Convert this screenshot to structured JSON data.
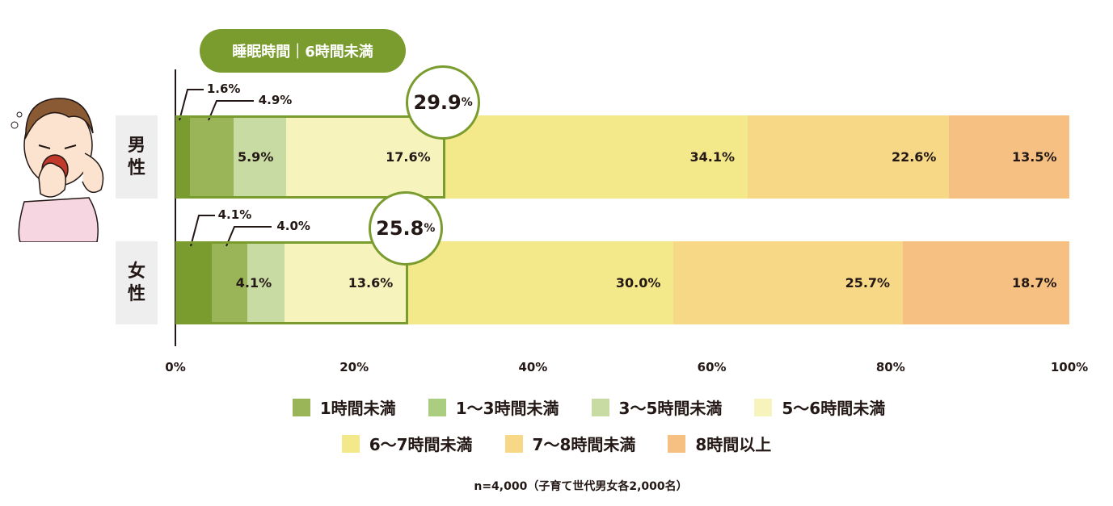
{
  "header": {
    "pill": "睡眠時間｜6時間未満"
  },
  "chart_data": {
    "type": "bar",
    "orientation": "horizontal-stacked-100",
    "categories": [
      "男性",
      "女性"
    ],
    "series": [
      {
        "name": "1時間未満",
        "color": "#7a9c2e",
        "values": [
          1.6,
          4.1
        ]
      },
      {
        "name": "1〜3時間未満",
        "color": "#9ab558",
        "values": [
          4.9,
          4.0
        ]
      },
      {
        "name": "3〜5時間未満",
        "color": "#c8dba2",
        "values": [
          5.9,
          4.1
        ]
      },
      {
        "name": "5〜6時間未満",
        "color": "#f6f3bd",
        "values": [
          17.6,
          13.6
        ]
      },
      {
        "name": "6〜7時間未満",
        "color": "#f4e98a",
        "values": [
          34.1,
          30.0
        ]
      },
      {
        "name": "7〜8時間未満",
        "color": "#f6d887",
        "values": [
          22.6,
          25.7
        ]
      },
      {
        "name": "8時間以上",
        "color": "#f6c083",
        "values": [
          13.5,
          18.7
        ]
      }
    ],
    "highlight_totals": [
      29.9,
      25.8
    ],
    "highlight_label": "睡眠時間｜6時間未満",
    "xticks": [
      "0%",
      "20%",
      "40%",
      "60%",
      "80%",
      "100%"
    ],
    "xlim": [
      0,
      100
    ],
    "note": "n=4,000（子育て世代男女各2,000名）"
  },
  "labels": {
    "male": "男\n性",
    "female": "女\n性",
    "pct": "%"
  }
}
